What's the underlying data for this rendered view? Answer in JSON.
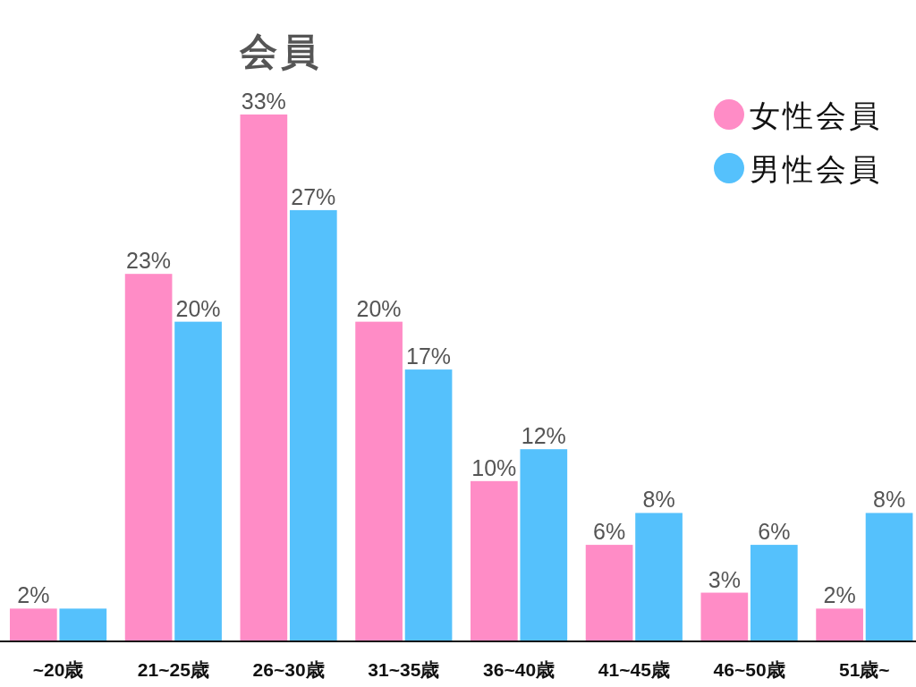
{
  "chart_data": {
    "type": "bar",
    "title": "会員",
    "categories": [
      "~20歳",
      "21~25歳",
      "26~30歳",
      "31~35歳",
      "36~40歳",
      "41~45歳",
      "46~50歳",
      "51歳~"
    ],
    "series": [
      {
        "name": "女性会員",
        "color": "#ff8cc6",
        "values": [
          2,
          23,
          33,
          20,
          10,
          6,
          3,
          2
        ],
        "value_labels": [
          "2%",
          "23%",
          "33%",
          "20%",
          "10%",
          "6%",
          "3%",
          "2%"
        ]
      },
      {
        "name": "男性会員",
        "color": "#55c1fc",
        "values": [
          2,
          20,
          27,
          17,
          12,
          8,
          6,
          8
        ],
        "value_labels": [
          null,
          "20%",
          "27%",
          "17%",
          "12%",
          "8%",
          "6%",
          "8%"
        ]
      }
    ],
    "legend": "top right"
  }
}
